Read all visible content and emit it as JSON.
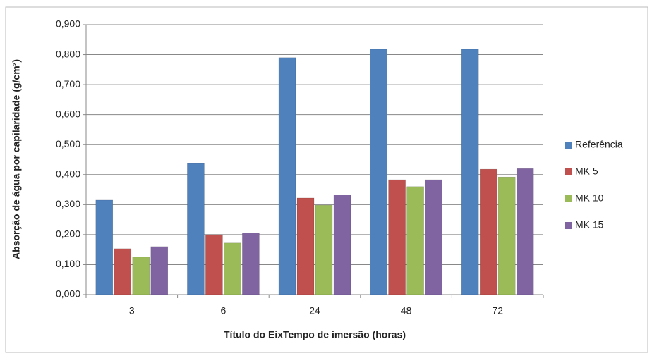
{
  "chart_data": {
    "type": "bar",
    "x_label": "Título do EixTempo de imersão (horas)",
    "y_label": "Absorção de água por capilaridade (g/cm²)",
    "categories": [
      "3",
      "6",
      "24",
      "48",
      "72"
    ],
    "series": [
      {
        "name": "Referência",
        "color": "#4f81bd",
        "values": [
          0.315,
          0.437,
          0.79,
          0.818,
          0.818
        ]
      },
      {
        "name": "MK 5",
        "color": "#c0504d",
        "values": [
          0.153,
          0.2,
          0.322,
          0.383,
          0.418
        ]
      },
      {
        "name": "MK 10",
        "color": "#9bbb59",
        "values": [
          0.125,
          0.172,
          0.298,
          0.36,
          0.392
        ]
      },
      {
        "name": "MK 15",
        "color": "#8064a2",
        "values": [
          0.16,
          0.205,
          0.333,
          0.383,
          0.42
        ]
      }
    ],
    "ylim": [
      0,
      0.9
    ],
    "yticks": [
      {
        "value": 0,
        "label": "0,000"
      },
      {
        "value": 0.1,
        "label": "0,100"
      },
      {
        "value": 0.2,
        "label": "0,200"
      },
      {
        "value": 0.3,
        "label": "0,300"
      },
      {
        "value": 0.4,
        "label": "0,400"
      },
      {
        "value": 0.5,
        "label": "0,500"
      },
      {
        "value": 0.6,
        "label": "0,600"
      },
      {
        "value": 0.7,
        "label": "0,700"
      },
      {
        "value": 0.8,
        "label": "0,800"
      },
      {
        "value": 0.9,
        "label": "0,900"
      }
    ],
    "grid": true,
    "legend": "right"
  }
}
